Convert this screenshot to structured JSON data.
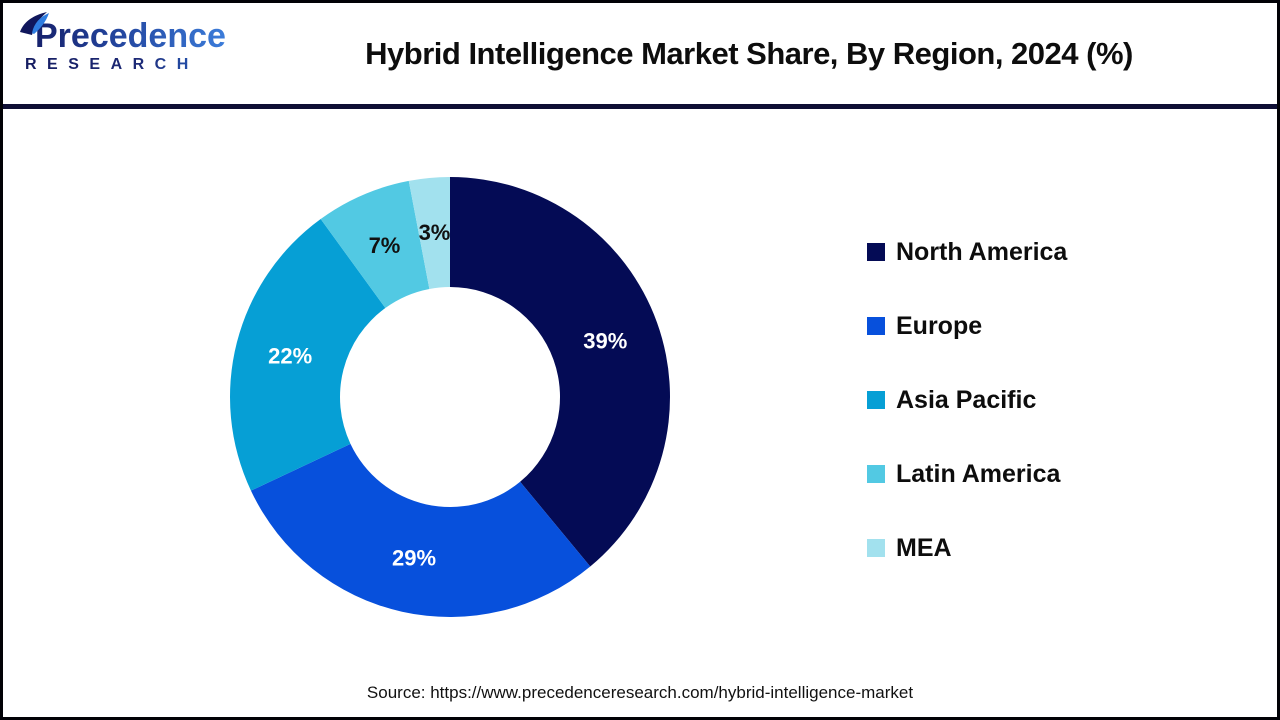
{
  "header": {
    "logo": {
      "line1": "Precedence",
      "line2": "RESEARCH"
    },
    "title": "Hybrid Intelligence Market Share, By Region, 2024 (%)"
  },
  "chart_data": {
    "type": "pie",
    "subtype": "donut",
    "title": "Hybrid Intelligence Market Share, By Region, 2024 (%)",
    "categories": [
      "North America",
      "Europe",
      "Asia Pacific",
      "Latin America",
      "MEA"
    ],
    "values": [
      39,
      29,
      22,
      7,
      3
    ],
    "unit": "%",
    "labels": [
      "39%",
      "29%",
      "22%",
      "7%",
      "3%"
    ],
    "colors": [
      "#040b55",
      "#0750dc",
      "#069fd5",
      "#52c9e3",
      "#a2e1ee"
    ],
    "label_colors": [
      "#ffffff",
      "#ffffff",
      "#ffffff",
      "#111111",
      "#111111"
    ],
    "start_angle_deg": 0,
    "direction": "clockwise",
    "donut_hole_ratio": 0.5,
    "legend_position": "right"
  },
  "footer": {
    "source": "Source: https://www.precedenceresearch.com/hybrid-intelligence-market"
  }
}
